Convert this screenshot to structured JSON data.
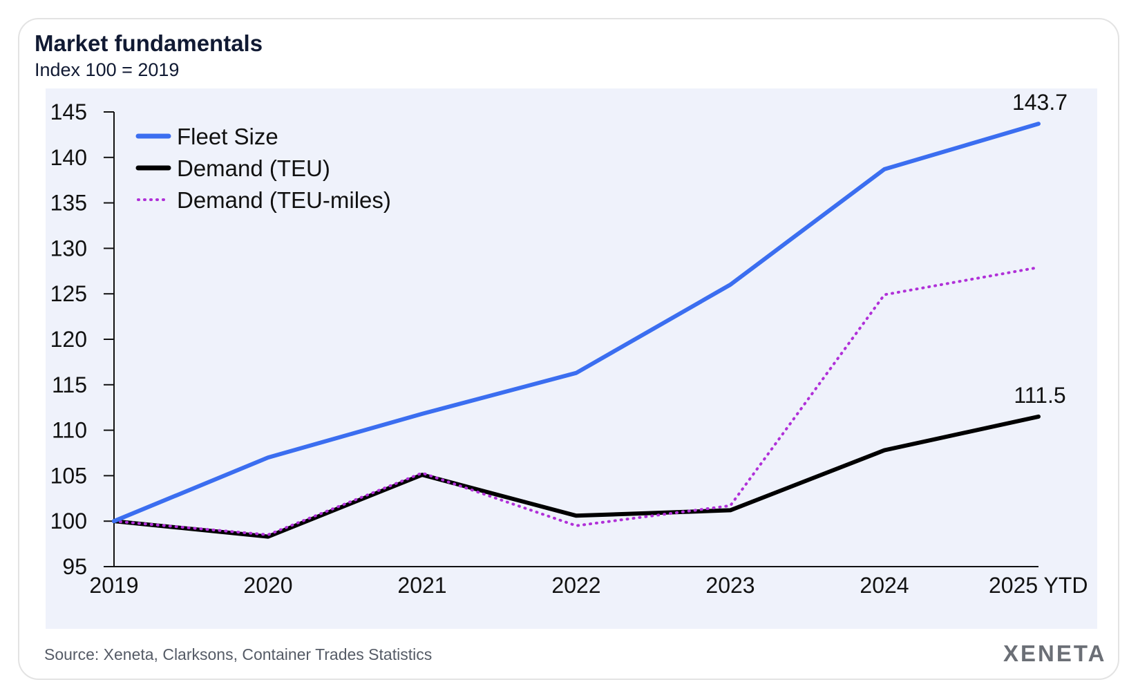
{
  "header": {
    "title": "Market fundamentals",
    "subtitle": "Index 100 = 2019"
  },
  "footer": {
    "source": "Source: Xeneta, Clarksons, Container Trades Statistics",
    "brand": "XENETA"
  },
  "colors": {
    "fleet": "#3b6ef0",
    "demand_teu": "#000000",
    "demand_teu_miles": "#b030d8",
    "axis": "#111111"
  },
  "chart_data": {
    "type": "line",
    "title": "Market fundamentals",
    "subtitle": "Index 100 = 2019",
    "xlabel": "",
    "ylabel": "",
    "categories": [
      "2019",
      "2020",
      "2021",
      "2022",
      "2023",
      "2024",
      "2025 YTD"
    ],
    "ylim": [
      95,
      145
    ],
    "yticks": [
      95,
      100,
      105,
      110,
      115,
      120,
      125,
      130,
      135,
      140,
      145
    ],
    "legend_position": "top-left",
    "series": [
      {
        "name": "Fleet Size",
        "style": "solid",
        "color": "#3b6ef0",
        "values": [
          100,
          107,
          111.8,
          116.3,
          126,
          138.7,
          143.7
        ]
      },
      {
        "name": "Demand (TEU)",
        "style": "solid",
        "color": "#000000",
        "values": [
          100,
          98.3,
          105.1,
          100.6,
          101.2,
          107.8,
          111.5
        ]
      },
      {
        "name": "Demand (TEU-miles)",
        "style": "dotted",
        "color": "#b030d8",
        "values": [
          100,
          98.5,
          105.3,
          99.5,
          101.7,
          124.9,
          127.9
        ]
      }
    ],
    "annotations": [
      {
        "series": "Fleet Size",
        "index": 6,
        "text": "143.7"
      },
      {
        "series": "Demand (TEU)",
        "index": 6,
        "text": "111.5"
      }
    ]
  }
}
